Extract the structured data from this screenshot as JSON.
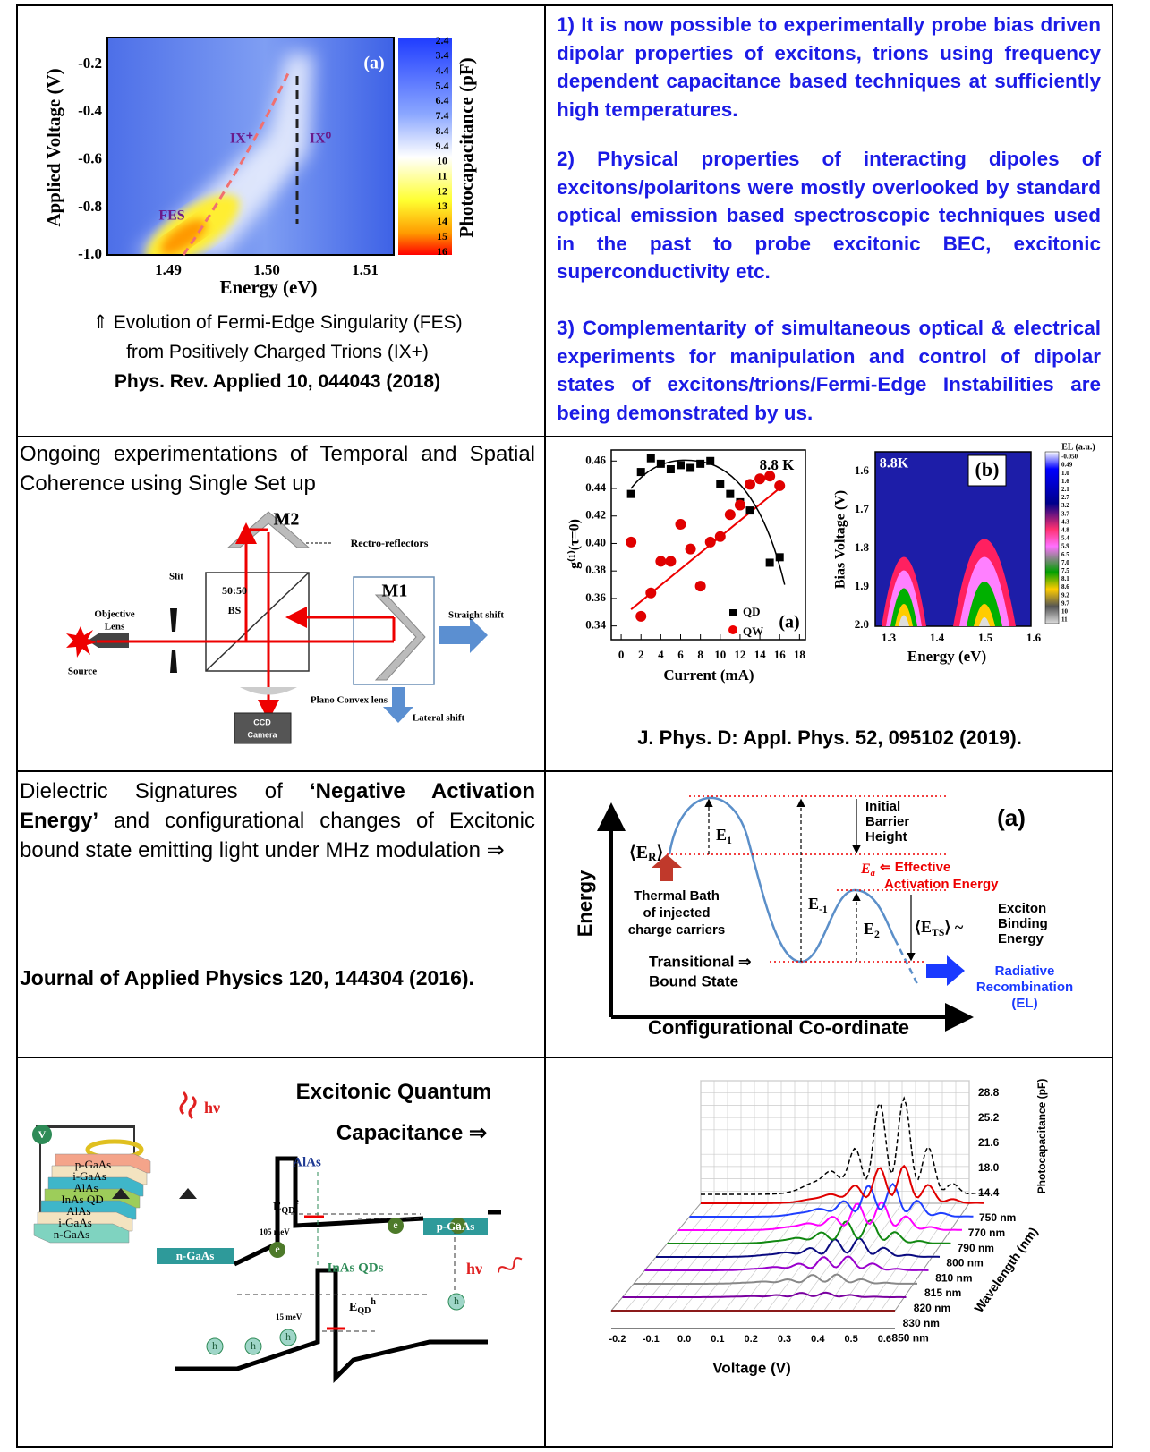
{
  "row1": {
    "figure": {
      "panel": "(a)",
      "y_axis_title": "Applied Voltage (V)",
      "x_axis_title": "Energy (eV)",
      "colorbar_title": "Photocapacitance (pF)",
      "yticks": [
        "-0.2",
        "-0.4",
        "-0.6",
        "-0.8",
        "-1.0"
      ],
      "xticks": [
        "1.49",
        "1.50",
        "1.51"
      ],
      "colorbar_ticks": [
        "2.4",
        "3.4",
        "4.4",
        "5.4",
        "6.4",
        "7.4",
        "8.4",
        "9.4",
        "10",
        "11",
        "12",
        "13",
        "14",
        "15",
        "16"
      ],
      "annotations": [
        "IX⁺",
        "IX⁰",
        "FES"
      ]
    },
    "caption": [
      "⇑ Evolution of Fermi-Edge Singularity (FES)",
      "from Positively Charged Trions (IX+)"
    ],
    "reference": "Phys. Rev. Applied 10, 044043 (2018)",
    "points": [
      "1) It is now possible to experimentally probe bias driven dipolar properties of excitons, trions using frequency dependent capacitance based techniques at sufficiently high temperatures.",
      "2) Physical properties of interacting dipoles of excitons/polaritons were mostly overlooked by standard optical emission based spectroscopic techniques used in the past to probe excitonic BEC, excitonic superconductivity etc.",
      "3) Complementarity of simultaneous optical & electrical experiments for manipulation and control of dipolar states of excitons/trions/Fermi-Edge Instabilities are being demonstrated by us."
    ]
  },
  "row2": {
    "left": {
      "text": "Ongoing experimentations of Temporal and Spatial Coherence using Single Set up",
      "setup_labels": [
        "M2",
        "Rectro-reflectors",
        "M1",
        "50:50",
        "BS",
        "Slit",
        "Objective",
        "Lens",
        "Source",
        "Straight shift",
        "Plano Convex lens",
        "CCD",
        "Camera",
        "Lateral shift"
      ]
    },
    "right": {
      "plot_a": {
        "panel": "(a)",
        "temperature": "8.8 K",
        "x_axis_title": "Current (mA)",
        "y_axis_title": "g⁽¹⁾(τ=0)",
        "xlim": [
          -1,
          18.6
        ],
        "ylim": [
          0.33,
          0.468
        ],
        "xticks": [
          0,
          2,
          4,
          6,
          8,
          10,
          12,
          14,
          16,
          18
        ],
        "yticks": [
          0.34,
          0.36,
          0.38,
          {
            "value": 0.4,
            "label": "0.40"
          },
          0.42,
          0.44,
          0.46
        ],
        "series": [
          {
            "name": "QD",
            "color": "#000000",
            "x": [
              1,
              2,
              3,
              4,
              5,
              6,
              7,
              8,
              9,
              10,
              11,
              12,
              13,
              15,
              16
            ],
            "values": [
              0.436,
              0.452,
              0.462,
              0.458,
              0.454,
              0.457,
              0.455,
              0.458,
              0.46,
              0.443,
              0.436,
              0.43,
              0.424,
              0.386,
              0.39
            ]
          },
          {
            "name": "QW",
            "color": "#e00000",
            "x": [
              1,
              2,
              3,
              4,
              5,
              6,
              7,
              8,
              9,
              10,
              11,
              12,
              13,
              14,
              15,
              16
            ],
            "values": [
              0.401,
              0.347,
              0.364,
              0.387,
              0.387,
              0.414,
              0.396,
              0.369,
              0.401,
              0.405,
              0.421,
              0.428,
              0.443,
              0.447,
              0.449,
              0.442
            ]
          }
        ]
      },
      "plot_b": {
        "panel": "(b)",
        "temperature": "8.8K",
        "x_axis_title": "Energy (eV)",
        "y_axis_title": "Bias Voltage (V)",
        "colorbar_title": "EL (a.u.)",
        "xticks": [
          "1.3",
          "1.4",
          "1.5",
          "1.6"
        ],
        "yticks": [
          "1.6",
          "1.7",
          "1.8",
          "1.9",
          "2.0"
        ],
        "colorbar_ticks": [
          "-0.050",
          "0.49",
          "1.0",
          "1.6",
          "2.1",
          "2.7",
          "3.2",
          "3.7",
          "4.3",
          "4.8",
          "5.4",
          "5.9",
          "6.5",
          "7.0",
          "7.5",
          "8.1",
          "8.6",
          "9.2",
          "9.7",
          "10",
          "11"
        ]
      },
      "reference": "J. Phys. D: Appl. Phys. 52, 095102 (2019)."
    }
  },
  "row3": {
    "left": {
      "text_parts": [
        "Dielectric Signatures of ",
        "‘Negative Activation Energy’",
        " and configurational changes of Excitonic bound state emitting light under MHz modulation ⇒"
      ],
      "reference": "Journal of Applied Physics 120, 144304 (2016)."
    },
    "right": {
      "panel": "(a)",
      "y_axis_title": "Energy",
      "x_axis_title": "Configurational Co-ordinate",
      "er": {
        "open": "⟨E",
        "sub": "R",
        "close": "⟩"
      },
      "e1": {
        "base": "E",
        "sub": "1"
      },
      "e_minus1": {
        "base": "E",
        "sub": "-1"
      },
      "e2": {
        "base": "E",
        "sub": "2"
      },
      "ea": {
        "base": "E",
        "sub": "a"
      },
      "barrier": [
        "Initial",
        "Barrier",
        "Height"
      ],
      "activation": [
        "⇐ Effective",
        "Activation Energy"
      ],
      "bath": [
        "Thermal Bath",
        "of injected",
        "charge carriers"
      ],
      "ets": {
        "open": "⟨E",
        "sub": "TS",
        "close": "⟩ ~"
      },
      "binding": [
        "Exciton",
        "Binding",
        "Energy"
      ],
      "bound_state": [
        "Transitional ⇒",
        "Bound State"
      ],
      "radiative": [
        "Radiative",
        "Recombination",
        "(EL)"
      ]
    }
  },
  "row4": {
    "left": {
      "title": [
        "Excitonic Quantum",
        "Capacitance ⇒"
      ],
      "voltage_symbol": "V",
      "photon": "hν",
      "layers": [
        "p-GaAs",
        "i-GaAs",
        "AlAs",
        "InAs QD",
        "AlAs",
        "i-GaAs",
        "n-GaAs"
      ],
      "barrier_label": "AlAs",
      "eqd_e": {
        "base": "E",
        "sub": "QD",
        "sup": "e"
      },
      "eqd_h": {
        "base": "E",
        "sub": "QD",
        "sup": "h"
      },
      "offset_e": "105 meV",
      "offset_h": "15 meV",
      "electron": "e",
      "hole": "h",
      "left_contact": "n-GaAs",
      "right_contact": "p-GaAs",
      "dots": "InAs QDs",
      "emission": "hν"
    },
    "right": {
      "x_axis_title": "Voltage (V)",
      "z_axis_title": "Photocapacitance (pF)",
      "depth_axis_title": "Wavelength (nm)",
      "xticks": [
        "-0.2",
        "-0.1",
        "0.0",
        "0.1",
        "0.2",
        "0.3",
        "0.4",
        "0.5",
        "0.6"
      ],
      "zticks": [
        "28.8",
        "25.2",
        "21.6",
        "18.0",
        "14.4"
      ],
      "wavelengths": [
        "750 nm",
        "770 nm",
        "790 nm",
        "800 nm",
        "810 nm",
        "815 nm",
        "820 nm",
        "830 nm",
        "850 nm"
      ]
    }
  }
}
